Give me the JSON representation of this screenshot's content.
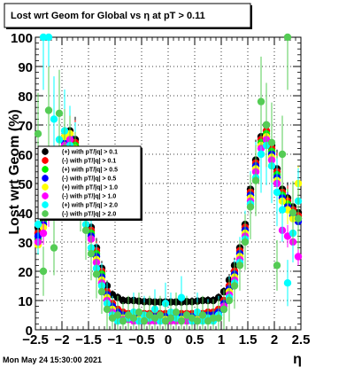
{
  "chart_data": {
    "type": "scatter",
    "title": "Lost wrt Geom for Global vs  η at pT > 0.11",
    "xlabel": "η",
    "ylabel": "Lost wrt Geom (%)",
    "xlim": [
      -2.5,
      2.5
    ],
    "ylim": [
      0,
      100
    ],
    "x_ticks": [
      -2.5,
      -2,
      -1.5,
      -1,
      -0.5,
      0,
      0.5,
      1,
      1.5,
      2,
      2.5
    ],
    "x_tick_labels": [
      "−2.5",
      "−2",
      "−1.5",
      "−1",
      "−0.5",
      "0",
      "0.5",
      "1",
      "1.5",
      "2",
      "2.5"
    ],
    "y_ticks": [
      0,
      10,
      20,
      30,
      40,
      50,
      60,
      70,
      80,
      90,
      100
    ],
    "y_tick_labels": [
      "0",
      "10",
      "20",
      "30",
      "40",
      "50",
      "60",
      "70",
      "80",
      "90",
      "100"
    ],
    "grid": true,
    "legend_position": "left-middle",
    "timestamp": "Mon May 24 15:30:00 2021",
    "series": [
      {
        "name": "(+) with pT/|q| > 0.1",
        "color": "#000000",
        "x": [
          -2.45,
          -2.35,
          -2.25,
          -2.15,
          -2.05,
          -1.95,
          -1.85,
          -1.75,
          -1.65,
          -1.55,
          -1.45,
          -1.35,
          -1.25,
          -1.15,
          -1.05,
          -0.95,
          -0.85,
          -0.75,
          -0.65,
          -0.55,
          -0.45,
          -0.35,
          -0.25,
          -0.15,
          -0.05,
          0.05,
          0.15,
          0.25,
          0.35,
          0.45,
          0.55,
          0.65,
          0.75,
          0.85,
          0.95,
          1.05,
          1.15,
          1.25,
          1.35,
          1.45,
          1.55,
          1.65,
          1.75,
          1.85,
          1.95,
          2.05,
          2.15,
          2.25,
          2.35,
          2.45
        ],
        "y": [
          35,
          40,
          45,
          52,
          60,
          66,
          68,
          65,
          55,
          43,
          35,
          28,
          21,
          15,
          12,
          11,
          10,
          10,
          10,
          9.8,
          9.6,
          9.6,
          9.5,
          9.5,
          9.5,
          9.5,
          9.5,
          9.5,
          9.6,
          9.6,
          9.8,
          10,
          10,
          10,
          11,
          13,
          17,
          22,
          28,
          36,
          48,
          58,
          66,
          70,
          63,
          55,
          48,
          45,
          42,
          40
        ]
      },
      {
        "name": "(-) with pT/|q| > 0.1",
        "color": "#ff0000",
        "x": [
          -2.45,
          -2.35,
          -2.25,
          -2.15,
          -2.05,
          -1.95,
          -1.85,
          -1.75,
          -1.65,
          -1.55,
          -1.45,
          -1.35,
          -1.25,
          -1.15,
          -1.05,
          -0.95,
          -0.85,
          -0.75,
          -0.65,
          -0.55,
          -0.45,
          -0.35,
          -0.25,
          -0.15,
          -0.05,
          0.05,
          0.15,
          0.25,
          0.35,
          0.45,
          0.55,
          0.65,
          0.75,
          0.85,
          0.95,
          1.05,
          1.15,
          1.25,
          1.35,
          1.45,
          1.55,
          1.65,
          1.75,
          1.85,
          1.95,
          2.05,
          2.15,
          2.25,
          2.35,
          2.45
        ],
        "y": [
          33,
          38,
          44,
          51,
          59,
          65,
          67,
          64,
          54,
          42,
          34,
          27,
          20,
          13,
          9,
          7,
          6,
          5.5,
          5.5,
          5.5,
          5.5,
          5.5,
          5.5,
          5.5,
          5.5,
          5.5,
          5.5,
          5.5,
          5.5,
          5.5,
          5.5,
          5.5,
          6,
          6,
          7,
          10,
          15,
          20,
          27,
          35,
          47,
          57,
          65,
          68,
          62,
          54,
          47,
          44,
          41,
          39
        ]
      },
      {
        "name": "(+) with pT/|q| > 0.5",
        "color": "#00ee00",
        "x": [
          -2.45,
          -2.35,
          -2.25,
          -2.15,
          -2.05,
          -1.95,
          -1.85,
          -1.75,
          -1.65,
          -1.55,
          -1.45,
          -1.35,
          -1.25,
          -1.15,
          -1.05,
          -0.95,
          -0.85,
          -0.75,
          -0.65,
          -0.55,
          -0.45,
          -0.35,
          -0.25,
          -0.15,
          -0.05,
          0.05,
          0.15,
          0.25,
          0.35,
          0.45,
          0.55,
          0.65,
          0.75,
          0.85,
          0.95,
          1.05,
          1.15,
          1.25,
          1.35,
          1.45,
          1.55,
          1.65,
          1.75,
          1.85,
          1.95,
          2.05,
          2.15,
          2.25,
          2.35,
          2.45
        ],
        "y": [
          31,
          37,
          43,
          50,
          58,
          64,
          66,
          63,
          53,
          41,
          33,
          26,
          19,
          12,
          8,
          6,
          5,
          5,
          4.5,
          4.5,
          4.5,
          4.5,
          4.5,
          4.5,
          4.5,
          4.5,
          4.5,
          4.5,
          4.5,
          4.5,
          4.5,
          5,
          5,
          5,
          6,
          9,
          14,
          19,
          26,
          34,
          46,
          56,
          64,
          67,
          61,
          53,
          46,
          43,
          40,
          38
        ]
      },
      {
        "name": "(-) with pT/|q| > 0.5",
        "color": "#0000ff",
        "x": [
          -2.45,
          -2.35,
          -2.25,
          -2.15,
          -2.05,
          -1.95,
          -1.85,
          -1.75,
          -1.65,
          -1.55,
          -1.45,
          -1.35,
          -1.25,
          -1.15,
          -1.05,
          -0.95,
          -0.85,
          -0.75,
          -0.65,
          -0.55,
          -0.45,
          -0.35,
          -0.25,
          -0.15,
          -0.05,
          0.05,
          0.15,
          0.25,
          0.35,
          0.45,
          0.55,
          0.65,
          0.75,
          0.85,
          0.95,
          1.05,
          1.15,
          1.25,
          1.35,
          1.45,
          1.55,
          1.65,
          1.75,
          1.85,
          1.95,
          2.05,
          2.15,
          2.25,
          2.35,
          2.45
        ],
        "y": [
          32,
          36,
          42,
          50,
          58,
          64,
          66,
          62,
          52,
          40,
          32,
          25,
          18,
          12,
          8,
          6,
          5,
          5,
          4.5,
          4.5,
          4.5,
          4.5,
          4.5,
          4.5,
          4.5,
          4.5,
          4.5,
          4.5,
          4.5,
          4.5,
          4.5,
          5,
          5,
          5,
          6,
          9,
          14,
          19,
          26,
          34,
          46,
          56,
          63,
          66,
          60,
          52,
          45,
          42,
          39,
          37
        ]
      },
      {
        "name": "(+) with pT/|q| > 1.0",
        "color": "#ffff00",
        "x": [
          -2.45,
          -2.35,
          -2.25,
          -2.15,
          -2.05,
          -1.95,
          -1.85,
          -1.75,
          -1.65,
          -1.55,
          -1.45,
          -1.35,
          -1.25,
          -1.15,
          -1.05,
          -0.95,
          -0.85,
          -0.75,
          -0.65,
          -0.55,
          -0.45,
          -0.35,
          -0.25,
          -0.15,
          -0.05,
          0.05,
          0.15,
          0.25,
          0.35,
          0.45,
          0.55,
          0.65,
          0.75,
          0.85,
          0.95,
          1.05,
          1.15,
          1.25,
          1.35,
          1.45,
          1.55,
          1.65,
          1.75,
          1.85,
          1.95,
          2.05,
          2.15,
          2.25,
          2.35,
          2.45
        ],
        "y": [
          29,
          35,
          44,
          52,
          60,
          66,
          67,
          62,
          51,
          40,
          31,
          24,
          17,
          11,
          7,
          5,
          4,
          3.5,
          3.5,
          3.5,
          3.5,
          3.5,
          3.5,
          3.5,
          3.5,
          3.5,
          3.5,
          3.5,
          3.5,
          3.5,
          3.5,
          4,
          4,
          4,
          5,
          8,
          13,
          18,
          25,
          33,
          45,
          55,
          63,
          66,
          59,
          51,
          44,
          41,
          38,
          50
        ]
      },
      {
        "name": "(-) with pT/|q| > 1.0",
        "color": "#ff00ff",
        "x": [
          -2.45,
          -2.35,
          -2.25,
          -2.15,
          -2.05,
          -1.95,
          -1.85,
          -1.75,
          -1.65,
          -1.55,
          -1.45,
          -1.35,
          -1.25,
          -1.15,
          -1.05,
          -0.95,
          -0.85,
          -0.75,
          -0.65,
          -0.55,
          -0.45,
          -0.35,
          -0.25,
          -0.15,
          -0.05,
          0.05,
          0.15,
          0.25,
          0.35,
          0.45,
          0.55,
          0.65,
          0.75,
          0.85,
          0.95,
          1.05,
          1.15,
          1.25,
          1.35,
          1.45,
          1.55,
          1.65,
          1.75,
          1.85,
          1.95,
          2.05,
          2.15,
          2.25,
          2.35,
          2.45
        ],
        "y": [
          30,
          33,
          40,
          48,
          57,
          63,
          65,
          61,
          50,
          39,
          31,
          23,
          16,
          10,
          6,
          4,
          3.5,
          3.5,
          3,
          3,
          3,
          3,
          3,
          3,
          3,
          3,
          3,
          3,
          3,
          3,
          3,
          3.5,
          3.5,
          4,
          5,
          8,
          12,
          17,
          24,
          32,
          44,
          54,
          62,
          65,
          58,
          50,
          34,
          32,
          30,
          25
        ]
      },
      {
        "name": "(+) with pT/|q| > 2.0",
        "color": "#00ffff",
        "x": [
          -2.45,
          -2.35,
          -2.25,
          -2.15,
          -2.05,
          -1.95,
          -1.85,
          -1.75,
          -1.65,
          -1.55,
          -1.45,
          -1.35,
          -1.25,
          -1.15,
          -1.05,
          -0.95,
          -0.85,
          -0.75,
          -0.65,
          -0.55,
          -0.45,
          -0.35,
          -0.25,
          -0.15,
          -0.05,
          0.05,
          0.15,
          0.25,
          0.35,
          0.45,
          0.55,
          0.65,
          0.75,
          0.85,
          0.95,
          1.05,
          1.15,
          1.25,
          1.35,
          1.45,
          1.55,
          1.65,
          1.75,
          1.85,
          1.95,
          2.05,
          2.15,
          2.25,
          2.35,
          2.45
        ],
        "y": [
          36,
          100,
          100,
          72,
          65,
          68,
          63,
          58,
          48,
          36,
          28,
          21,
          15,
          9,
          5,
          3,
          3,
          4,
          6,
          3,
          5,
          4,
          7,
          3,
          9,
          6,
          4,
          11,
          5,
          3,
          6,
          3,
          4,
          3,
          5,
          7,
          11,
          16,
          23,
          31,
          43,
          52,
          60,
          63,
          56,
          47,
          41,
          16,
          33,
          44
        ]
      },
      {
        "name": "(-) with pT/|q| > 2.0",
        "color": "#55cc55",
        "x": [
          -2.45,
          -2.35,
          -2.25,
          -2.15,
          -2.05,
          -1.95,
          -1.85,
          -1.75,
          -1.65,
          -1.55,
          -1.45,
          -1.35,
          -1.25,
          -1.15,
          -1.05,
          -0.95,
          -0.85,
          -0.75,
          -0.65,
          -0.55,
          -0.45,
          -0.35,
          -0.25,
          -0.15,
          -0.05,
          0.05,
          0.15,
          0.25,
          0.35,
          0.45,
          0.55,
          0.65,
          0.75,
          0.85,
          0.95,
          1.05,
          1.15,
          1.25,
          1.35,
          1.45,
          1.55,
          1.65,
          1.75,
          1.85,
          1.95,
          2.05,
          2.15,
          2.25,
          2.35,
          2.45
        ],
        "y": [
          67,
          20,
          75,
          28,
          74,
          62,
          60,
          55,
          45,
          34,
          26,
          19,
          13,
          7,
          4,
          5,
          3,
          5,
          4,
          6,
          3,
          5,
          4,
          5,
          3,
          4,
          6,
          3,
          5,
          4,
          3,
          5,
          3,
          4,
          4,
          7,
          10,
          15,
          22,
          30,
          42,
          51,
          78,
          70,
          64,
          22,
          60,
          100,
          40,
          38
        ]
      }
    ]
  }
}
